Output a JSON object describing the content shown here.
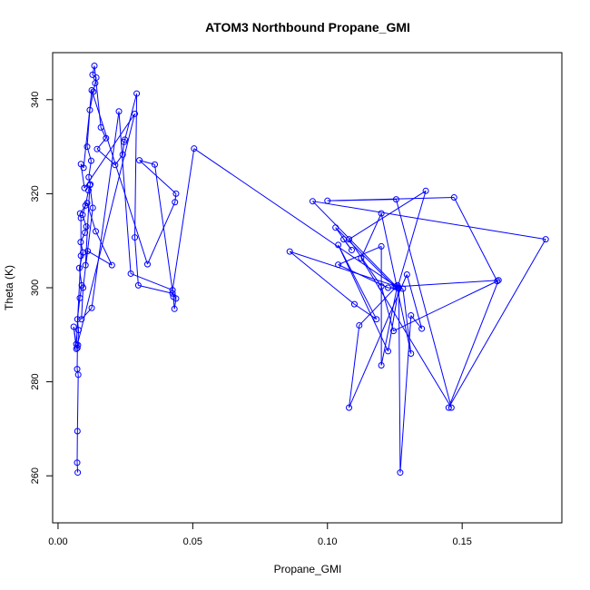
{
  "chart_data": {
    "type": "line",
    "title": "ATOM3 Northbound Propane_GMI",
    "xlabel": "Propane_GMI",
    "ylabel": "Theta (K)",
    "xlim": [
      -0.002,
      0.187
    ],
    "ylim": [
      250,
      350
    ],
    "x_ticks": [
      0.0,
      0.05,
      0.1,
      0.15
    ],
    "x_tick_labels": [
      "0.00",
      "0.05",
      "0.10",
      "0.15"
    ],
    "y_ticks": [
      260,
      280,
      300,
      320,
      340
    ],
    "y_tick_labels": [
      "260",
      "280",
      "300",
      "320",
      "340"
    ],
    "grid": false,
    "legend": "none",
    "markers": "open-circle",
    "color": "#0000ff",
    "series": [
      {
        "x": [
          0.0073,
          0.0071,
          0.0072,
          0.0075,
          0.0071,
          0.0072,
          0.0074,
          0.0076,
          0.0072,
          0.0081,
          0.0088,
          0.0079,
          0.0093,
          0.0084,
          0.01,
          0.0105,
          0.0091,
          0.0102,
          0.0113,
          0.012,
          0.0114,
          0.0123,
          0.0108,
          0.0118,
          0.0131,
          0.0138,
          0.0142,
          0.0128,
          0.0135,
          0.0159,
          0.0178,
          0.0145,
          0.0212,
          0.024,
          0.0245,
          0.0248,
          0.0292,
          0.0285,
          0.0298,
          0.0425,
          0.0438,
          0.0432,
          0.0428,
          0.0359,
          0.0302,
          0.0438,
          0.0434,
          0.0332,
          0.0125,
          0.0095,
          0.0085,
          0.0098,
          0.0285,
          0.0068,
          0.0058,
          0.0068,
          0.0085,
          0.0085,
          0.0082,
          0.0108,
          0.014,
          0.02,
          0.011,
          0.0102,
          0.0118,
          0.0129,
          0.0093,
          0.0087,
          0.0125,
          0.0226,
          0.027,
          0.0425,
          0.0505,
          0.1255,
          0.086,
          0.11,
          0.1182,
          0.104,
          0.1225,
          0.1265,
          0.127,
          0.131,
          0.135,
          0.1295,
          0.108,
          0.1118,
          0.126,
          0.12,
          0.12,
          0.104,
          0.1225,
          0.128,
          0.131,
          0.12,
          0.1125,
          0.146,
          0.1255,
          0.1,
          0.147,
          0.163,
          0.1245,
          0.12,
          0.108,
          0.1365,
          0.126,
          0.0945,
          0.181,
          0.145,
          0.1635,
          0.125,
          0.103,
          0.109,
          0.106
        ],
        "y": [
          260.7,
          262.8,
          269.5,
          281.5,
          282.7,
          287.2,
          287.8,
          291.0,
          293.3,
          297.8,
          300.5,
          304.2,
          307.5,
          309.7,
          311.7,
          313.0,
          315.5,
          317.5,
          320.7,
          322.0,
          323.5,
          327.0,
          330.0,
          337.8,
          341.7,
          343.5,
          344.7,
          345.3,
          347.2,
          334.1,
          331.8,
          329.5,
          326.1,
          328.3,
          331.0,
          331.5,
          341.3,
          310.7,
          300.5,
          298.8,
          297.7,
          295.5,
          298.1,
          326.2,
          327.1,
          320.0,
          318.2,
          305.0,
          342.0,
          325.5,
          326.3,
          321.2,
          337.0,
          287.0,
          291.7,
          288.0,
          306.8,
          314.8,
          315.8,
          318.0,
          312.0,
          304.8,
          307.8,
          304.8,
          321.8,
          317.0,
          300.0,
          293.3,
          295.7,
          337.5,
          303.0,
          299.5,
          329.6,
          300.3,
          307.7,
          296.5,
          293.3,
          309.1,
          286.5,
          300.0,
          260.7,
          294.1,
          291.3,
          302.8,
          274.5,
          292.0,
          300.5,
          283.5,
          308.8,
          304.9,
          300.0,
          299.8,
          286.0,
          315.8,
          306.3,
          274.5,
          318.8,
          318.5,
          319.2,
          301.4,
          290.8,
          300.3,
          310.3,
          320.6,
          300.0,
          318.4,
          310.3,
          274.5,
          301.6,
          300.2,
          312.8,
          308.0,
          310.3
        ]
      }
    ]
  }
}
